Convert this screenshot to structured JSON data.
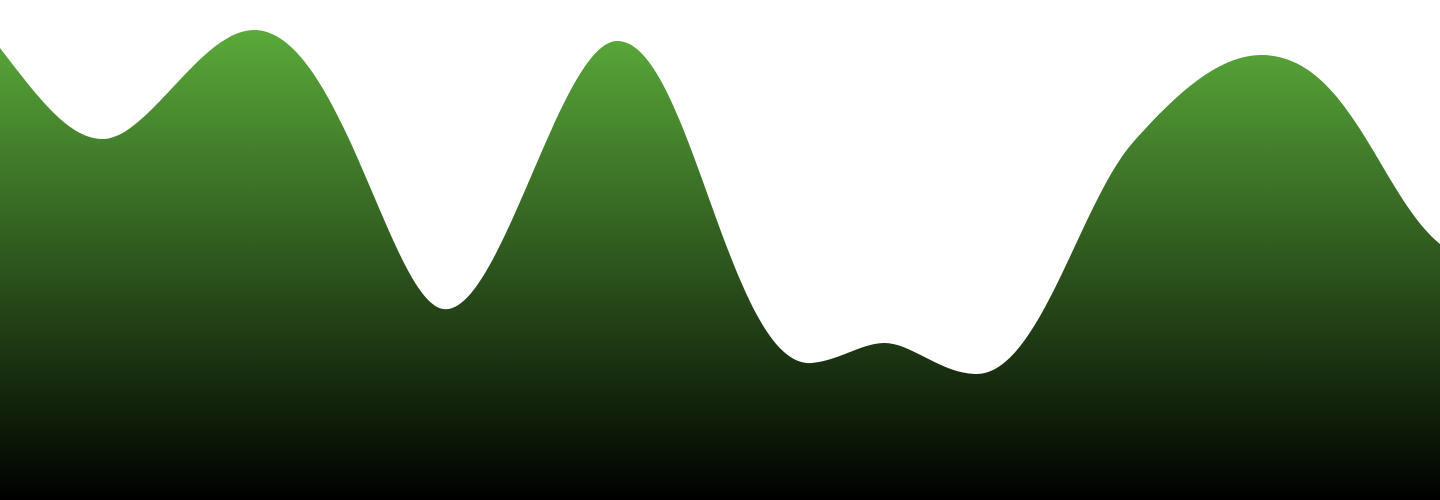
{
  "wave_graphic": {
    "background_color": "#ffffff",
    "gradient_top_color": "#5aaa3a",
    "gradient_bottom_color": "#000000"
  }
}
